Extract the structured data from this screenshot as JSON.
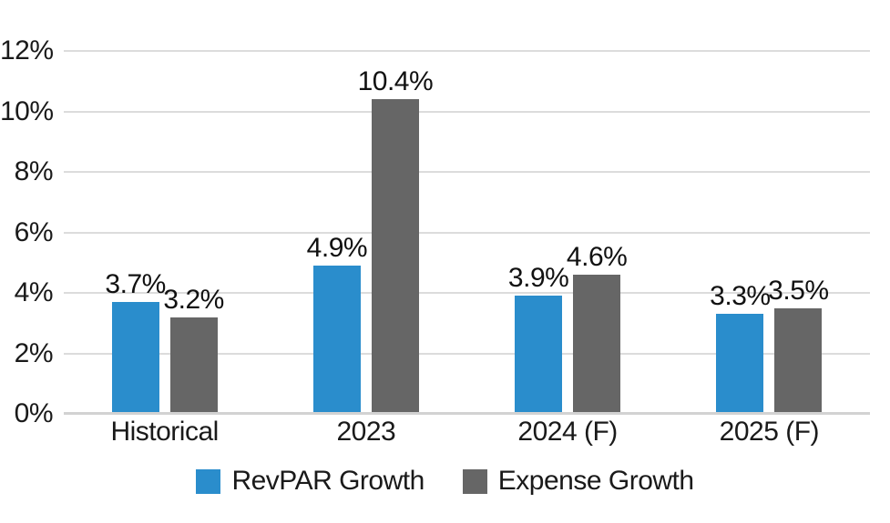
{
  "chart_data": {
    "type": "bar",
    "title": "",
    "xlabel": "",
    "ylabel": "",
    "categories": [
      "Historical",
      "2023",
      "2024 (F)",
      "2025 (F)"
    ],
    "series": [
      {
        "name": "RevPAR Growth",
        "color": "#2a8dcc",
        "values": [
          3.7,
          4.9,
          3.9,
          3.3
        ],
        "labels": [
          "3.7%",
          "4.9%",
          "3.9%",
          "3.3%"
        ]
      },
      {
        "name": "Expense Growth",
        "color": "#666666",
        "values": [
          3.2,
          10.4,
          4.6,
          3.5
        ],
        "labels": [
          "3.2%",
          "10.4%",
          "4.6%",
          "3.5%"
        ]
      }
    ],
    "ylim": [
      0,
      12
    ],
    "ytick_values": [
      0,
      2,
      4,
      6,
      8,
      10,
      12
    ],
    "ytick_labels": [
      "0%",
      "2%",
      "4%",
      "6%",
      "8%",
      "10%",
      "12%"
    ],
    "grid": true,
    "legend_position": "bottom"
  },
  "colors": {
    "revpar_blue": "#2a8dcc",
    "expense_gray": "#666666",
    "gridline": "#dcdcdc",
    "axis_line": "#d2d2d2",
    "text": "#1a1a1a",
    "background": "#ffffff"
  }
}
